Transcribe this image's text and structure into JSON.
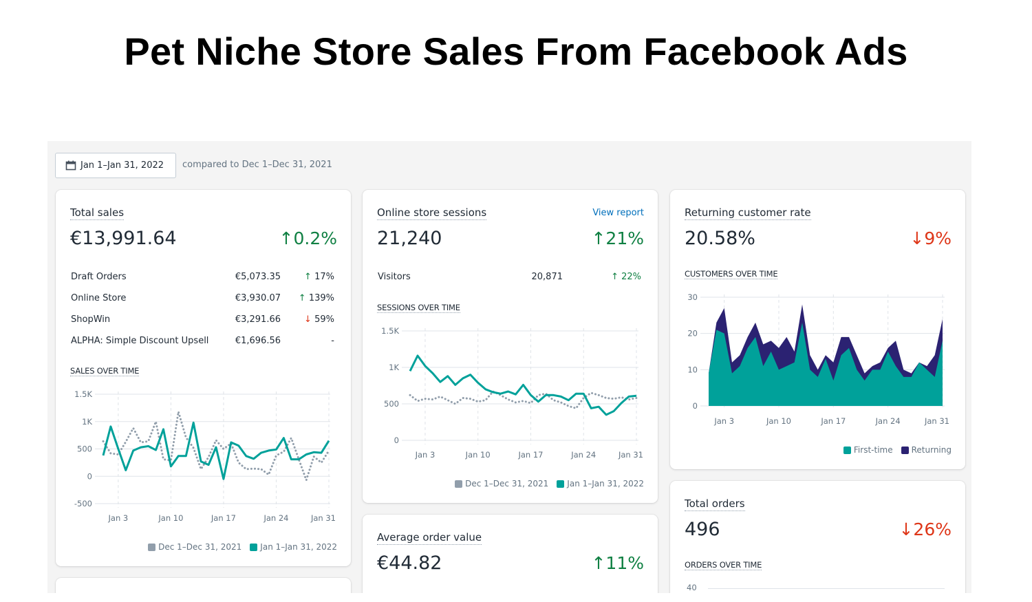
{
  "page_title": "Pet Niche Store Sales From Facebook Ads",
  "header": {
    "date_range": "Jan 1–Jan 31, 2022",
    "calendar_icon": "calendar-icon",
    "compared_to": "compared to Dec 1–Dec 31, 2021"
  },
  "colors": {
    "teal": "#00a19a",
    "gray": "#919eab",
    "navy": "#2b2272",
    "up": "#108043",
    "down": "#de3618"
  },
  "total_sales": {
    "title": "Total sales",
    "value": "€13,991.64",
    "change": "↑0.2%",
    "breakdown": [
      {
        "label": "Draft Orders",
        "value": "€5,073.35",
        "arrow": "↑",
        "change": "17%"
      },
      {
        "label": "Online Store",
        "value": "€3,930.07",
        "arrow": "↑",
        "change": "139%"
      },
      {
        "label": "ShopWin",
        "value": "€3,291.66",
        "arrow": "↓",
        "change": "59%"
      },
      {
        "label": "ALPHA: Simple Discount Upsell",
        "value": "€1,696.56",
        "arrow": "",
        "change": "-"
      }
    ],
    "chart_title": "SALES OVER TIME",
    "legend": [
      "Dec 1–Dec 31, 2021",
      "Jan 1–Jan 31, 2022"
    ]
  },
  "sessions": {
    "title": "Online store sessions",
    "view_report": "View report",
    "value": "21,240",
    "change": "↑21%",
    "visitors_label": "Visitors",
    "visitors_value": "20,871",
    "visitors_change": "↑ 22%",
    "chart_title": "SESSIONS OVER TIME",
    "legend": [
      "Dec 1–Dec 31, 2021",
      "Jan 1–Jan 31, 2022"
    ]
  },
  "returning": {
    "title": "Returning customer rate",
    "value": "20.58%",
    "change": "↓9%",
    "chart_title": "CUSTOMERS OVER TIME",
    "legend": [
      "First-time",
      "Returning"
    ]
  },
  "aov": {
    "title": "Average order value",
    "value": "€44.82",
    "change": "↑11%"
  },
  "orders": {
    "title": "Total orders",
    "value": "496",
    "change": "↓26%",
    "chart_title": "ORDERS OVER TIME",
    "first_tick": "40"
  },
  "chart_data": [
    {
      "type": "line",
      "title": "SALES OVER TIME",
      "x_ticks": [
        "Jan 3",
        "Jan 10",
        "Jan 17",
        "Jan 24",
        "Jan 31"
      ],
      "y_ticks": [
        "1.5K",
        "1K",
        "500",
        "0",
        "-500"
      ],
      "ylim": [
        -500,
        1500
      ],
      "x_days": 31,
      "series": [
        {
          "name": "Dec 1–Dec 31, 2021",
          "style": "dotted",
          "values": [
            640,
            420,
            400,
            630,
            880,
            620,
            640,
            1000,
            310,
            290,
            1180,
            710,
            520,
            130,
            350,
            660,
            500,
            600,
            250,
            130,
            140,
            130,
            30,
            380,
            450,
            700,
            310,
            -70,
            360,
            250,
            470
          ]
        },
        {
          "name": "Jan 1–Jan 31, 2022",
          "style": "solid",
          "values": [
            380,
            910,
            500,
            110,
            470,
            530,
            550,
            480,
            860,
            180,
            370,
            370,
            980,
            270,
            210,
            530,
            -50,
            620,
            560,
            370,
            320,
            430,
            470,
            490,
            700,
            310,
            310,
            400,
            440,
            430,
            650
          ]
        }
      ]
    },
    {
      "type": "line",
      "title": "SESSIONS OVER TIME",
      "x_ticks": [
        "Jan 3",
        "Jan 10",
        "Jan 17",
        "Jan 24",
        "Jan 31"
      ],
      "y_ticks": [
        "1.5K",
        "1K",
        "500",
        "0"
      ],
      "ylim": [
        0,
        1500
      ],
      "x_days": 31,
      "series": [
        {
          "name": "Dec 1–Dec 31, 2021",
          "style": "dotted",
          "values": [
            620,
            540,
            570,
            560,
            600,
            550,
            500,
            580,
            570,
            530,
            550,
            670,
            620,
            560,
            520,
            540,
            510,
            620,
            640,
            550,
            520,
            470,
            440,
            580,
            650,
            620,
            580,
            570,
            590,
            560,
            580
          ]
        },
        {
          "name": "Jan 1–Jan 31, 2022",
          "style": "solid",
          "values": [
            950,
            1160,
            1020,
            920,
            800,
            880,
            760,
            850,
            900,
            790,
            700,
            660,
            640,
            670,
            630,
            760,
            620,
            530,
            620,
            620,
            600,
            550,
            640,
            640,
            440,
            460,
            350,
            400,
            510,
            600,
            610
          ]
        }
      ]
    },
    {
      "type": "area",
      "stacked": true,
      "title": "CUSTOMERS OVER TIME",
      "x_ticks": [
        "Jan 3",
        "Jan 10",
        "Jan 17",
        "Jan 24",
        "Jan 31"
      ],
      "y_ticks": [
        "30",
        "20",
        "10",
        "0"
      ],
      "ylim": [
        0,
        30
      ],
      "x_days": 31,
      "series": [
        {
          "name": "First-time",
          "values": [
            9,
            21,
            20,
            9,
            11,
            16,
            19,
            11,
            15,
            10,
            11,
            12,
            23,
            10,
            8,
            13,
            7,
            14,
            16,
            10,
            7,
            10,
            10,
            15,
            11,
            8,
            8,
            12,
            10,
            8,
            18
          ]
        },
        {
          "name": "Returning",
          "values": [
            0,
            2,
            7,
            3,
            3,
            3,
            4,
            6,
            3,
            6,
            8,
            3,
            5,
            4,
            2,
            1,
            5,
            5,
            3,
            4,
            2,
            1,
            2,
            1,
            7,
            2,
            1,
            0,
            1,
            6,
            6
          ]
        }
      ]
    }
  ]
}
